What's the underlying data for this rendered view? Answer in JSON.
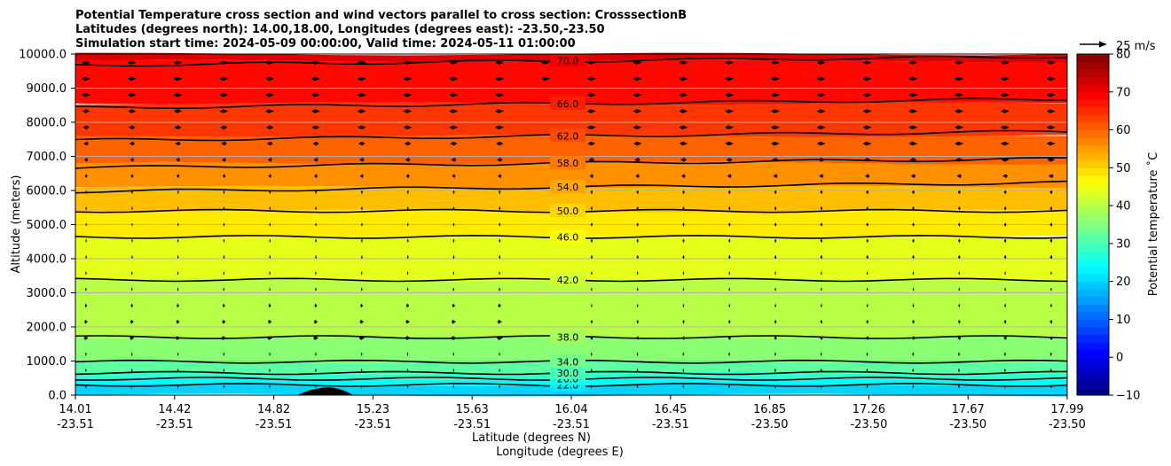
{
  "chart_data": {
    "type": "contourf",
    "title_lines": [
      "Potential Temperature cross section and wind vectors parallel to cross section: CrosssectionB",
      "Latitudes (degrees north): 14.00,18.00, Longitudes (degrees east): -23.50,-23.50",
      "Simulation start time: 2024-05-09 00:00:00, Valid time: 2024-05-11 01:00:00"
    ],
    "xlabel_1": "Latitude (degrees N)",
    "xlabel_2": "Longitude (degrees E)",
    "ylabel": "Altitude (meters)",
    "colorbar_label": "Potential temperature ˚C",
    "vector_key_label": "25 m/s",
    "ylim": [
      0,
      10000
    ],
    "y_ticks": [
      {
        "value": 0,
        "label": "0.0"
      },
      {
        "value": 1000,
        "label": "1000.0"
      },
      {
        "value": 2000,
        "label": "2000.0"
      },
      {
        "value": 3000,
        "label": "3000.0"
      },
      {
        "value": 4000,
        "label": "4000.0"
      },
      {
        "value": 5000,
        "label": "5000.0"
      },
      {
        "value": 6000,
        "label": "6000.0"
      },
      {
        "value": 7000,
        "label": "7000.0"
      },
      {
        "value": 8000,
        "label": "8000.0"
      },
      {
        "value": 9000,
        "label": "9000.0"
      },
      {
        "value": 10000,
        "label": "10000.0"
      }
    ],
    "x_ticks": [
      {
        "lat": "14.01",
        "lon": "-23.51"
      },
      {
        "lat": "14.42",
        "lon": "-23.51"
      },
      {
        "lat": "14.82",
        "lon": "-23.51"
      },
      {
        "lat": "15.23",
        "lon": "-23.51"
      },
      {
        "lat": "15.63",
        "lon": "-23.51"
      },
      {
        "lat": "16.04",
        "lon": "-23.51"
      },
      {
        "lat": "16.45",
        "lon": "-23.51"
      },
      {
        "lat": "16.85",
        "lon": "-23.50"
      },
      {
        "lat": "17.26",
        "lon": "-23.50"
      },
      {
        "lat": "17.67",
        "lon": "-23.50"
      },
      {
        "lat": "17.99",
        "lon": "-23.50"
      }
    ],
    "colorbar_range": [
      -10,
      80
    ],
    "colorbar_ticks": [
      {
        "value": -10,
        "label": "−10"
      },
      {
        "value": 0,
        "label": "0"
      },
      {
        "value": 10,
        "label": "10"
      },
      {
        "value": 20,
        "label": "20"
      },
      {
        "value": 30,
        "label": "30"
      },
      {
        "value": 40,
        "label": "40"
      },
      {
        "value": 50,
        "label": "50"
      },
      {
        "value": 60,
        "label": "60"
      },
      {
        "value": 70,
        "label": "70"
      },
      {
        "value": 80,
        "label": "80"
      }
    ],
    "contours": [
      {
        "level": 22,
        "label": "22.0",
        "altitude": 300
      },
      {
        "level": 26,
        "label": "26.0",
        "altitude": 480
      },
      {
        "level": 30,
        "label": "30.0",
        "altitude": 650
      },
      {
        "level": 34,
        "label": "34.0",
        "altitude": 980
      },
      {
        "level": 38,
        "label": "38.0",
        "altitude": 1700
      },
      {
        "level": 42,
        "label": "42.0",
        "altitude": 3380
      },
      {
        "level": 46,
        "label": "46.0",
        "altitude": 4640
      },
      {
        "level": 50,
        "label": "50.0",
        "altitude": 5400
      },
      {
        "level": 54,
        "label": "54.0",
        "altitude": 6100
      },
      {
        "level": 58,
        "label": "58.0",
        "altitude": 6800
      },
      {
        "level": 62,
        "label": "62.0",
        "altitude": 7600
      },
      {
        "level": 66,
        "label": "66.0",
        "altitude": 8550
      },
      {
        "level": 70,
        "label": "70.0",
        "altitude": 9800
      }
    ]
  }
}
